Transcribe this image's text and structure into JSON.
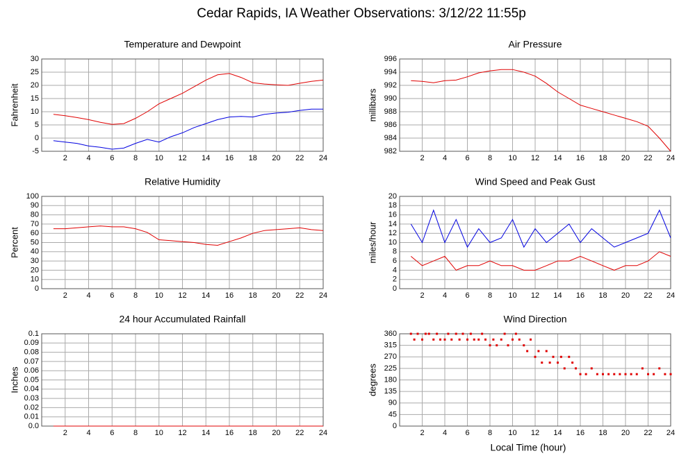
{
  "title": "Cedar Rapids, IA Weather Observations: 3/12/22 11:55p",
  "xlabel": "Local Time (hour)",
  "chart_data": [
    {
      "type": "line",
      "title": "Temperature and Dewpoint",
      "ylabel": "Fahrenheit",
      "x": [
        1,
        2,
        3,
        4,
        5,
        6,
        7,
        8,
        9,
        10,
        11,
        12,
        13,
        14,
        15,
        16,
        17,
        18,
        19,
        20,
        21,
        22,
        23,
        24
      ],
      "series": [
        {
          "color": "#e00000",
          "values": [
            9,
            8.5,
            7.8,
            7,
            6,
            5.2,
            5.5,
            7.5,
            10,
            13,
            15,
            17,
            19.5,
            22,
            24,
            24.5,
            23,
            21,
            20.5,
            20.2,
            20,
            20.8,
            21.5,
            22
          ]
        },
        {
          "color": "#0000e0",
          "values": [
            -1,
            -1.5,
            -2,
            -3,
            -3.5,
            -4.2,
            -3.8,
            -2,
            -0.5,
            -1.5,
            0.5,
            2,
            4,
            5.5,
            7,
            8,
            8.2,
            8,
            9,
            9.5,
            9.8,
            10.5,
            11,
            11
          ]
        }
      ],
      "xlim": [
        0,
        24
      ],
      "xticks": [
        2,
        4,
        6,
        8,
        10,
        12,
        14,
        16,
        18,
        20,
        22,
        24
      ],
      "ylim": [
        -5,
        30
      ],
      "yticks": [
        -5,
        0,
        5,
        10,
        15,
        20,
        25,
        30
      ],
      "grid": true
    },
    {
      "type": "line",
      "title": "Air Pressure",
      "ylabel": "millibars",
      "x": [
        1,
        2,
        3,
        4,
        5,
        6,
        7,
        8,
        9,
        10,
        11,
        12,
        13,
        14,
        15,
        16,
        17,
        18,
        19,
        20,
        21,
        22,
        23,
        24
      ],
      "series": [
        {
          "color": "#e00000",
          "values": [
            992.7,
            992.6,
            992.4,
            992.7,
            992.8,
            993.3,
            993.9,
            994.2,
            994.4,
            994.4,
            994,
            993.4,
            992.3,
            991,
            990,
            989,
            988.5,
            988,
            987.5,
            987,
            986.5,
            985.8,
            984,
            982
          ]
        }
      ],
      "xlim": [
        0,
        24
      ],
      "xticks": [
        2,
        4,
        6,
        8,
        10,
        12,
        14,
        16,
        18,
        20,
        22,
        24
      ],
      "ylim": [
        982,
        996
      ],
      "yticks": [
        982,
        984,
        986,
        988,
        990,
        992,
        994,
        996
      ],
      "grid": true
    },
    {
      "type": "line",
      "title": "Relative Humidity",
      "ylabel": "Percent",
      "x": [
        1,
        2,
        3,
        4,
        5,
        6,
        7,
        8,
        9,
        10,
        11,
        12,
        13,
        14,
        15,
        16,
        17,
        18,
        19,
        20,
        21,
        22,
        23,
        24
      ],
      "series": [
        {
          "color": "#e00000",
          "values": [
            65,
            65,
            66,
            67,
            68,
            67,
            67,
            65,
            61,
            53,
            52,
            51,
            50,
            48,
            47,
            51,
            55,
            60,
            63,
            64,
            65,
            66,
            64,
            63
          ]
        }
      ],
      "xlim": [
        0,
        24
      ],
      "xticks": [
        2,
        4,
        6,
        8,
        10,
        12,
        14,
        16,
        18,
        20,
        22,
        24
      ],
      "ylim": [
        0,
        100
      ],
      "yticks": [
        0,
        10,
        20,
        30,
        40,
        50,
        60,
        70,
        80,
        90,
        100
      ],
      "grid": true
    },
    {
      "type": "line",
      "title": "Wind Speed and Peak Gust",
      "ylabel": "miles/hour",
      "x": [
        1,
        2,
        3,
        4,
        5,
        6,
        7,
        8,
        9,
        10,
        11,
        12,
        13,
        14,
        15,
        16,
        17,
        18,
        19,
        20,
        21,
        22,
        23,
        24
      ],
      "series": [
        {
          "color": "#0000e0",
          "values": [
            14,
            10,
            17,
            10,
            15,
            9,
            13,
            10,
            11,
            15,
            9,
            13,
            10,
            12,
            14,
            10,
            13,
            11,
            9,
            10,
            11,
            12,
            17,
            11
          ]
        },
        {
          "color": "#e00000",
          "values": [
            7,
            5,
            6,
            7,
            4,
            5,
            5,
            6,
            5,
            5,
            4,
            4,
            5,
            6,
            6,
            7,
            6,
            5,
            4,
            5,
            5,
            6,
            8,
            7
          ]
        }
      ],
      "xlim": [
        0,
        24
      ],
      "xticks": [
        2,
        4,
        6,
        8,
        10,
        12,
        14,
        16,
        18,
        20,
        22,
        24
      ],
      "ylim": [
        0,
        20
      ],
      "yticks": [
        0,
        2,
        4,
        6,
        8,
        10,
        12,
        14,
        16,
        18,
        20
      ],
      "grid": true
    },
    {
      "type": "line",
      "title": "24 hour Accumulated Rainfall",
      "ylabel": "Inches",
      "x": [
        1,
        24
      ],
      "series": [
        {
          "color": "#e00000",
          "values": [
            0,
            0
          ]
        }
      ],
      "xlim": [
        0,
        24
      ],
      "xticks": [
        2,
        4,
        6,
        8,
        10,
        12,
        14,
        16,
        18,
        20,
        22,
        24
      ],
      "ylim": [
        0,
        0.1
      ],
      "yticks": [
        {
          "value": 0,
          "label": "0.0"
        },
        0.01,
        0.02,
        0.03,
        0.04,
        0.05,
        0.06,
        0.07,
        0.08,
        0.09,
        0.1
      ],
      "grid": true
    },
    {
      "type": "scatter",
      "title": "Wind Direction",
      "ylabel": "degrees",
      "x": [
        1,
        1.3,
        1.6,
        2,
        2.3,
        2.6,
        3,
        3.3,
        3.6,
        4,
        4.3,
        4.6,
        5,
        5.3,
        5.6,
        6,
        6.3,
        6.6,
        7,
        7.3,
        7.6,
        8,
        8.3,
        8.6,
        9,
        9.3,
        9.6,
        10,
        10.3,
        10.6,
        11,
        11.3,
        11.6,
        12,
        12.3,
        12.6,
        13,
        13.3,
        13.6,
        14,
        14.3,
        14.6,
        15,
        15.3,
        15.6,
        16,
        16.5,
        17,
        17.5,
        18,
        18.5,
        19,
        19.5,
        20,
        20.5,
        21,
        21.5,
        22,
        22.5,
        23,
        23.5,
        24
      ],
      "values": [
        360,
        337.5,
        360,
        337.5,
        360,
        360,
        337.5,
        360,
        337.5,
        337.5,
        360,
        337.5,
        360,
        337.5,
        360,
        337.5,
        360,
        337.5,
        337.5,
        360,
        337.5,
        315,
        337.5,
        315,
        337.5,
        360,
        315,
        337.5,
        360,
        337.5,
        315,
        292.5,
        337.5,
        270,
        292.5,
        247.5,
        292.5,
        247.5,
        270,
        247.5,
        270,
        225,
        270,
        247.5,
        225,
        202.5,
        202.5,
        225,
        202.5,
        202.5,
        202.5,
        202.5,
        202.5,
        202.5,
        202.5,
        202.5,
        225,
        202.5,
        202.5,
        225,
        202.5,
        202.5
      ],
      "color": "#e00000",
      "xlim": [
        0,
        24
      ],
      "xticks": [
        2,
        4,
        6,
        8,
        10,
        12,
        14,
        16,
        18,
        20,
        22,
        24
      ],
      "ylim": [
        0,
        360
      ],
      "yticks": [
        0,
        45,
        90,
        135,
        180,
        225,
        270,
        315,
        360
      ],
      "grid": true
    }
  ]
}
